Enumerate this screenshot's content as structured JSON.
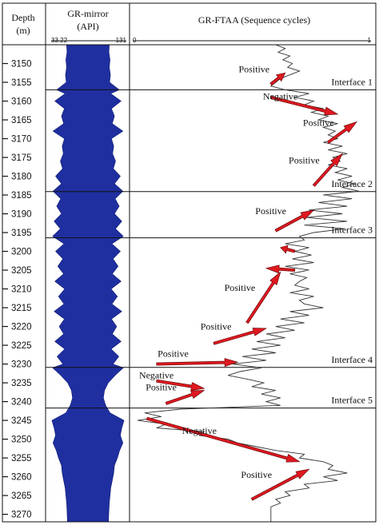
{
  "chart_data": {
    "type": "line",
    "headers": {
      "depth_title": "Depth",
      "depth_unit": "(m)",
      "gr_title": "GR-mirror",
      "gr_unit": "(API)",
      "ftaa_title": "GR-FTAA (Sequence cycles)"
    },
    "gr_range": {
      "min_label": "33.22",
      "max_label": "131"
    },
    "ftaa_range": {
      "min_label": "0",
      "max_label": "1",
      "xlim": [
        0,
        1
      ]
    },
    "depth_range": [
      3145,
      3272
    ],
    "depth_ticks": [
      3150,
      3155,
      3160,
      3165,
      3170,
      3175,
      3180,
      3185,
      3190,
      3195,
      3200,
      3205,
      3210,
      3215,
      3220,
      3225,
      3230,
      3235,
      3240,
      3245,
      3250,
      3255,
      3260,
      3265,
      3270
    ],
    "interfaces": [
      {
        "label": "Interface 1",
        "depth": 3157.0
      },
      {
        "label": "Interface 2",
        "depth": 3184.1
      },
      {
        "label": "Interface 3",
        "depth": 3196.4
      },
      {
        "label": "Interface 4",
        "depth": 3230.9
      },
      {
        "label": "Interface 5",
        "depth": 3241.7
      }
    ],
    "gr_series": {
      "name": "GR-mirror",
      "depth": [
        3145,
        3147,
        3149,
        3151,
        3153,
        3155,
        3157,
        3158,
        3160,
        3162,
        3164,
        3166,
        3168,
        3170,
        3172,
        3174,
        3176,
        3178,
        3180,
        3182,
        3184,
        3186,
        3188,
        3190,
        3192,
        3194,
        3196,
        3198,
        3200,
        3202,
        3204,
        3206,
        3208,
        3210,
        3212,
        3214,
        3216,
        3218,
        3220,
        3222,
        3224,
        3226,
        3228,
        3230,
        3231,
        3233,
        3235,
        3237,
        3239,
        3241,
        3243,
        3245,
        3247,
        3249,
        3251,
        3253,
        3255,
        3257,
        3259,
        3261,
        3263,
        3265,
        3267,
        3269,
        3271,
        3272
      ],
      "halfwidth": [
        0.58,
        0.57,
        0.6,
        0.58,
        0.61,
        0.59,
        0.85,
        0.62,
        0.9,
        0.64,
        0.72,
        0.66,
        0.95,
        0.64,
        0.7,
        0.67,
        0.75,
        0.69,
        0.88,
        0.72,
        0.95,
        0.74,
        0.85,
        0.72,
        0.92,
        0.75,
        0.96,
        0.65,
        0.88,
        0.68,
        0.82,
        0.66,
        0.9,
        0.63,
        0.8,
        0.65,
        0.92,
        0.64,
        0.78,
        0.66,
        0.9,
        0.63,
        0.84,
        0.68,
        0.96,
        0.74,
        0.55,
        0.45,
        0.42,
        0.48,
        0.6,
        0.98,
        0.92,
        0.88,
        0.95,
        0.86,
        0.8,
        0.72,
        0.7,
        0.66,
        0.62,
        0.6,
        0.58,
        0.57,
        0.56,
        0.56
      ]
    },
    "ftaa_series": {
      "name": "GR-FTAA",
      "depth": [
        3145,
        3146,
        3147,
        3148,
        3149,
        3150,
        3151,
        3152,
        3153,
        3154,
        3155,
        3156,
        3157,
        3158,
        3159,
        3160,
        3161,
        3162,
        3163,
        3164,
        3165,
        3166,
        3167,
        3168,
        3169,
        3170,
        3171,
        3172,
        3173,
        3174,
        3175,
        3176,
        3177,
        3178,
        3179,
        3180,
        3181,
        3182,
        3183,
        3184,
        3185,
        3186,
        3187,
        3188,
        3189,
        3190,
        3191,
        3192,
        3193,
        3194,
        3195,
        3196,
        3197,
        3198,
        3199,
        3200,
        3201,
        3202,
        3203,
        3204,
        3205,
        3206,
        3207,
        3208,
        3209,
        3210,
        3211,
        3212,
        3213,
        3214,
        3215,
        3216,
        3217,
        3218,
        3219,
        3220,
        3221,
        3222,
        3223,
        3224,
        3225,
        3226,
        3227,
        3228,
        3229,
        3230,
        3231,
        3232,
        3233,
        3234,
        3235,
        3236,
        3237,
        3238,
        3239,
        3240,
        3241,
        3242,
        3243,
        3244,
        3245,
        3246,
        3247,
        3248,
        3249,
        3250,
        3251,
        3252,
        3253,
        3254,
        3255,
        3256,
        3257,
        3258,
        3259,
        3260,
        3261,
        3262,
        3263,
        3264,
        3265,
        3266,
        3267,
        3268,
        3269,
        3270,
        3271,
        3272
      ],
      "value": [
        0.6,
        0.64,
        0.61,
        0.66,
        0.63,
        0.67,
        0.65,
        0.7,
        0.66,
        0.62,
        0.6,
        0.58,
        0.64,
        0.74,
        0.68,
        0.76,
        0.72,
        0.8,
        0.75,
        0.82,
        0.78,
        0.86,
        0.8,
        0.85,
        0.82,
        0.86,
        0.8,
        0.88,
        0.82,
        0.9,
        0.84,
        0.87,
        0.82,
        0.9,
        0.85,
        0.92,
        0.86,
        0.93,
        0.88,
        0.95,
        0.8,
        0.92,
        0.78,
        0.9,
        0.74,
        0.88,
        0.73,
        0.9,
        0.72,
        0.89,
        0.76,
        0.7,
        0.72,
        0.64,
        0.74,
        0.68,
        0.75,
        0.67,
        0.76,
        0.64,
        0.74,
        0.66,
        0.73,
        0.7,
        0.68,
        0.74,
        0.66,
        0.76,
        0.7,
        0.72,
        0.8,
        0.66,
        0.74,
        0.62,
        0.72,
        0.6,
        0.68,
        0.56,
        0.64,
        0.52,
        0.62,
        0.5,
        0.6,
        0.46,
        0.56,
        0.42,
        0.54,
        0.45,
        0.4,
        0.48,
        0.55,
        0.5,
        0.6,
        0.54,
        0.62,
        0.56,
        0.62,
        0.2,
        0.05,
        0.12,
        0.02,
        0.14,
        0.1,
        0.3,
        0.28,
        0.4,
        0.44,
        0.52,
        0.6,
        0.72,
        0.7,
        0.8,
        0.84,
        0.82,
        0.9,
        0.8,
        0.86,
        0.72,
        0.74,
        0.64,
        0.66,
        0.6,
        0.62,
        0.58,
        0.58,
        0.58,
        0.58,
        0.58
      ]
    },
    "arrows": [
      {
        "label": "Positive",
        "from": [
          0.58,
          3155.5
        ],
        "to": [
          0.64,
          3152.5
        ]
      },
      {
        "label": "Negative",
        "from": [
          0.58,
          3159.0
        ],
        "to": [
          0.86,
          3163.5
        ]
      },
      {
        "label": "Positive",
        "from": [
          0.82,
          3171.0
        ],
        "to": [
          0.94,
          3165.5
        ]
      },
      {
        "label": "Positive",
        "from": [
          0.76,
          3182.5
        ],
        "to": [
          0.88,
          3174.0
        ]
      },
      {
        "label": "Positive",
        "from": [
          0.6,
          3194.5
        ],
        "to": [
          0.76,
          3189.0
        ]
      },
      {
        "label": "",
        "from": [
          0.68,
          3200.0
        ],
        "to": [
          0.62,
          3199.0
        ]
      },
      {
        "label": "",
        "from": [
          0.68,
          3205.0
        ],
        "to": [
          0.56,
          3204.5
        ]
      },
      {
        "label": "Positive",
        "from": [
          0.48,
          3219.0
        ],
        "to": [
          0.62,
          3205.5
        ]
      },
      {
        "label": "Positive",
        "from": [
          0.34,
          3224.5
        ],
        "to": [
          0.56,
          3220.5
        ]
      },
      {
        "label": "Positive",
        "from": [
          0.1,
          3230.0
        ],
        "to": [
          0.44,
          3229.5
        ]
      },
      {
        "label": "Negative",
        "from": [
          0.1,
          3234.5
        ],
        "to": [
          0.3,
          3236.5
        ]
      },
      {
        "label": "Positive",
        "from": [
          0.14,
          3240.5
        ],
        "to": [
          0.3,
          3237.0
        ]
      },
      {
        "label": "Negative",
        "from": [
          0.06,
          3244.5
        ],
        "to": [
          0.7,
          3256.0
        ]
      },
      {
        "label": "Positive",
        "from": [
          0.5,
          3266.0
        ],
        "to": [
          0.74,
          3258.0
        ]
      }
    ]
  }
}
